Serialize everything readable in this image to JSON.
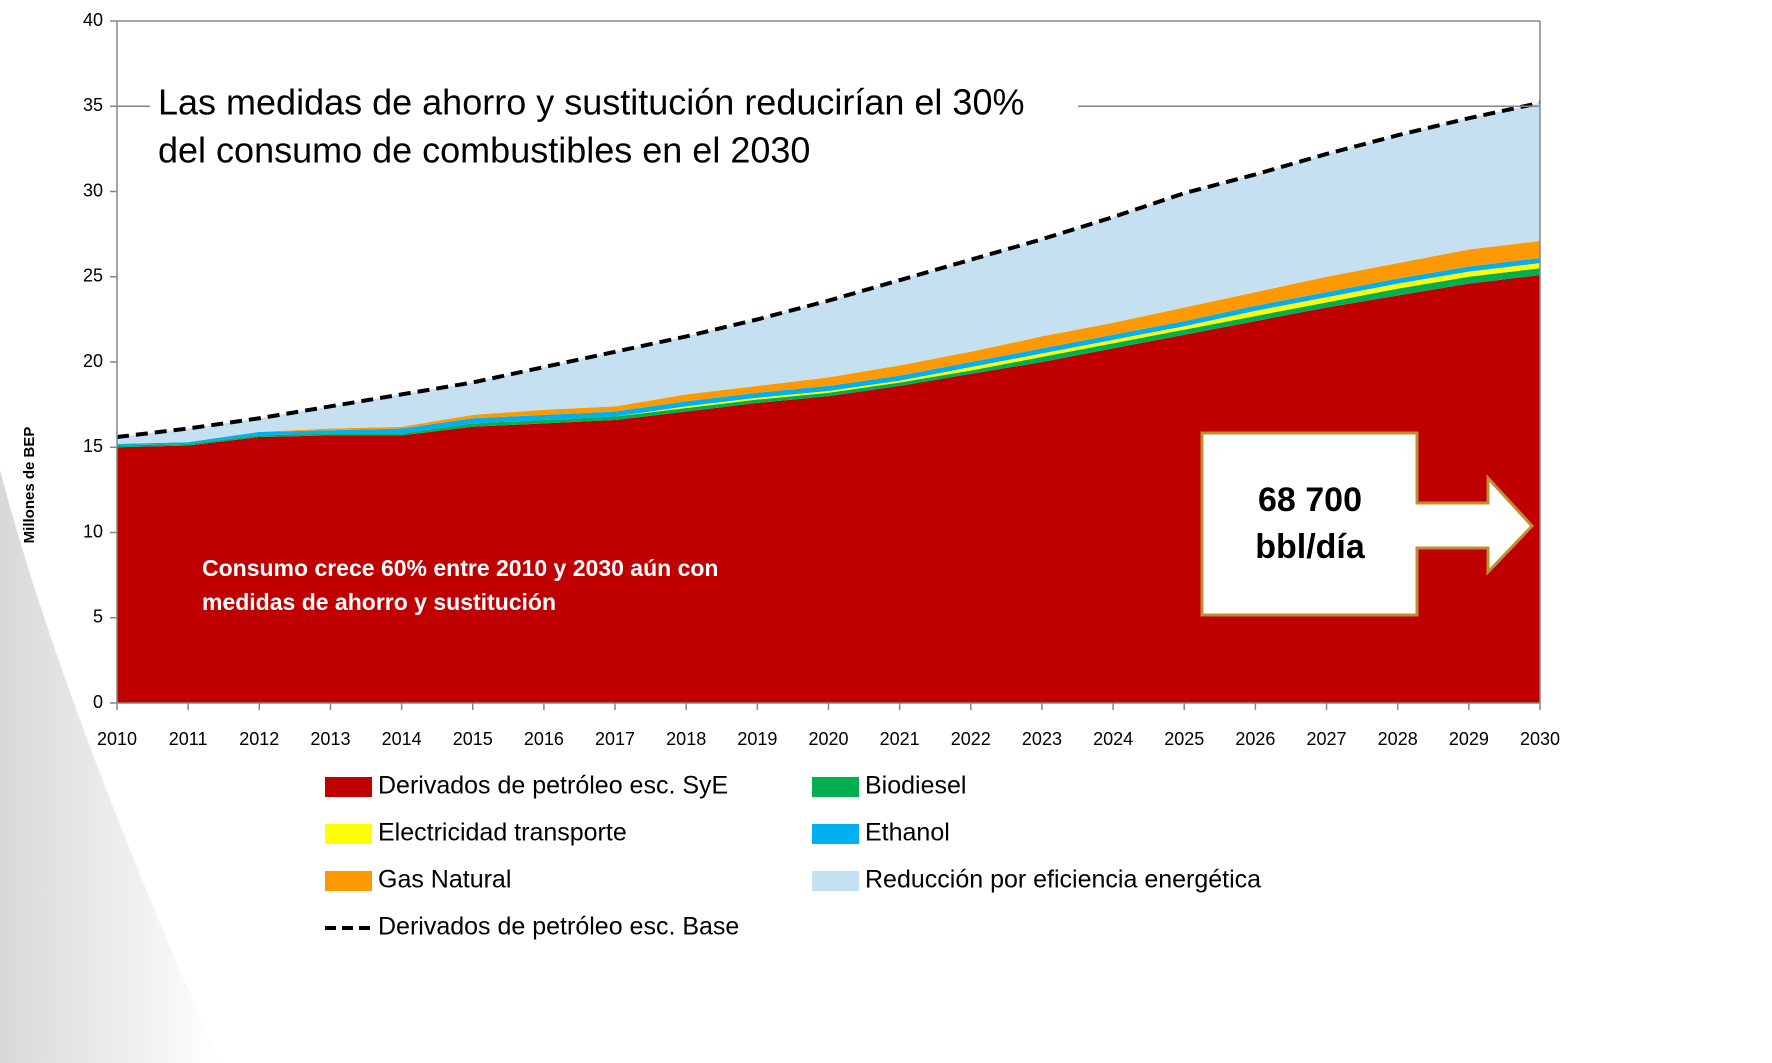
{
  "chart_data": {
    "type": "stacked_area",
    "ylabel": "Millones de BEP",
    "x": [
      2010,
      2011,
      2012,
      2013,
      2014,
      2015,
      2016,
      2017,
      2018,
      2019,
      2020,
      2021,
      2022,
      2023,
      2024,
      2025,
      2026,
      2027,
      2028,
      2029,
      2030
    ],
    "xlim": [
      2010,
      2030
    ],
    "ylim": [
      0,
      40
    ],
    "yticks": [
      0,
      5,
      10,
      15,
      20,
      25,
      30,
      35,
      40
    ],
    "series": [
      {
        "name": "Derivados de petróleo esc. SyE",
        "color": "#c00000",
        "values": [
          15.0,
          15.1,
          15.6,
          15.7,
          15.7,
          16.2,
          16.4,
          16.6,
          17.1,
          17.6,
          18.0,
          18.6,
          19.3,
          20.0,
          20.8,
          21.6,
          22.4,
          23.2,
          23.9,
          24.6,
          25.1
        ]
      },
      {
        "name": "Biodiesel",
        "color": "#00b050",
        "values": [
          0.1,
          0.1,
          0.1,
          0.1,
          0.1,
          0.2,
          0.2,
          0.2,
          0.2,
          0.2,
          0.2,
          0.2,
          0.2,
          0.3,
          0.3,
          0.3,
          0.3,
          0.3,
          0.4,
          0.4,
          0.4
        ]
      },
      {
        "name": "Electricidad transporte",
        "color": "#ffff00",
        "values": [
          0,
          0,
          0,
          0,
          0,
          0,
          0,
          0,
          0.1,
          0.1,
          0.1,
          0.1,
          0.2,
          0.2,
          0.2,
          0.2,
          0.3,
          0.3,
          0.3,
          0.3,
          0.3
        ]
      },
      {
        "name": "Ethanol",
        "color": "#00b0f0",
        "values": [
          0.1,
          0.1,
          0.2,
          0.2,
          0.3,
          0.3,
          0.3,
          0.3,
          0.3,
          0.3,
          0.3,
          0.3,
          0.3,
          0.3,
          0.3,
          0.3,
          0.3,
          0.3,
          0.3,
          0.3,
          0.3
        ]
      },
      {
        "name": "Gas Natural",
        "color": "#ff9900",
        "values": [
          0,
          0,
          0,
          0.1,
          0.1,
          0.2,
          0.3,
          0.3,
          0.4,
          0.4,
          0.5,
          0.6,
          0.6,
          0.7,
          0.7,
          0.8,
          0.8,
          0.9,
          0.9,
          1.0,
          1.0
        ]
      },
      {
        "name": "Reducción por eficiencia energética",
        "color": "#c5e0f0",
        "values": [
          0.4,
          0.8,
          0.8,
          1.3,
          1.9,
          1.9,
          2.5,
          3.2,
          3.4,
          3.9,
          4.5,
          5.0,
          5.4,
          5.7,
          6.2,
          6.7,
          6.9,
          7.2,
          7.5,
          7.7,
          8.1
        ]
      },
      {
        "name": "Derivados de petróleo esc. Base",
        "color": "#000000",
        "type": "line",
        "dashed": true,
        "values": [
          15.6,
          16.1,
          16.7,
          17.4,
          18.1,
          18.8,
          19.7,
          20.6,
          21.5,
          22.5,
          23.6,
          24.8,
          26.0,
          27.2,
          28.5,
          29.9,
          31.0,
          32.2,
          33.3,
          34.3,
          35.2
        ]
      }
    ],
    "annotations": [
      {
        "lines": [
          "Las medidas de ahorro y sustitución reducirían el 30%",
          "del consumo de combustibles en el 2030"
        ]
      },
      {
        "lines": [
          "Consumo crece 60% entre 2010 y 2030 aún con",
          "medidas de ahorro y sustitución"
        ]
      },
      {
        "lines": [
          "68 700",
          "bbl/día"
        ]
      }
    ]
  }
}
